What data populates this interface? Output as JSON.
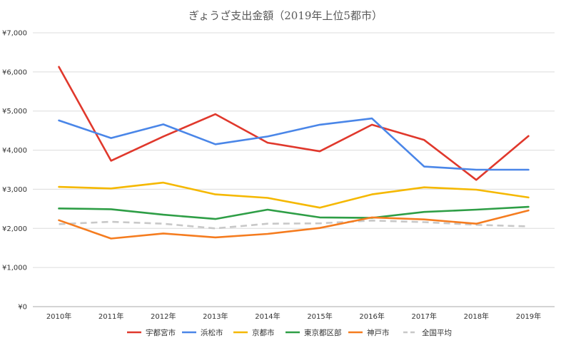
{
  "chart_data": {
    "type": "line",
    "title": "ぎょうざ支出金額（2019年上位5都市）",
    "xlabel": "",
    "ylabel": "",
    "categories": [
      "2010年",
      "2011年",
      "2012年",
      "2013年",
      "2014年",
      "2015年",
      "2016年",
      "2017年",
      "2018年",
      "2019年"
    ],
    "y_ticks": [
      "¥0",
      "¥1,000",
      "¥2,000",
      "¥3,000",
      "¥4,000",
      "¥5,000",
      "¥6,000",
      "¥7,000"
    ],
    "ylim": [
      0,
      7000
    ],
    "grid": true,
    "legend_position": "bottom",
    "series": [
      {
        "name": "宇都宮市",
        "color": "#e0382c",
        "dashed": false,
        "values": [
          6130,
          3730,
          4350,
          4920,
          4190,
          3970,
          4650,
          4260,
          3240,
          4360
        ]
      },
      {
        "name": "浜松市",
        "color": "#4a86e8",
        "dashed": false,
        "values": [
          4760,
          4310,
          4660,
          4150,
          4350,
          4650,
          4810,
          3580,
          3500,
          3500
        ]
      },
      {
        "name": "京都市",
        "color": "#f5b800",
        "dashed": false,
        "values": [
          3060,
          3020,
          3170,
          2870,
          2780,
          2530,
          2870,
          3050,
          2990,
          2790
        ]
      },
      {
        "name": "東京都区部",
        "color": "#2e9e46",
        "dashed": false,
        "values": [
          2510,
          2490,
          2350,
          2240,
          2480,
          2280,
          2270,
          2420,
          2480,
          2550
        ]
      },
      {
        "name": "神戸市",
        "color": "#f57c1f",
        "dashed": false,
        "values": [
          2210,
          1740,
          1870,
          1770,
          1860,
          2010,
          2280,
          2230,
          2120,
          2460
        ]
      },
      {
        "name": "全国平均",
        "color": "#c8c8c8",
        "dashed": true,
        "values": [
          2110,
          2170,
          2120,
          2000,
          2120,
          2130,
          2200,
          2160,
          2090,
          2050
        ]
      }
    ]
  }
}
